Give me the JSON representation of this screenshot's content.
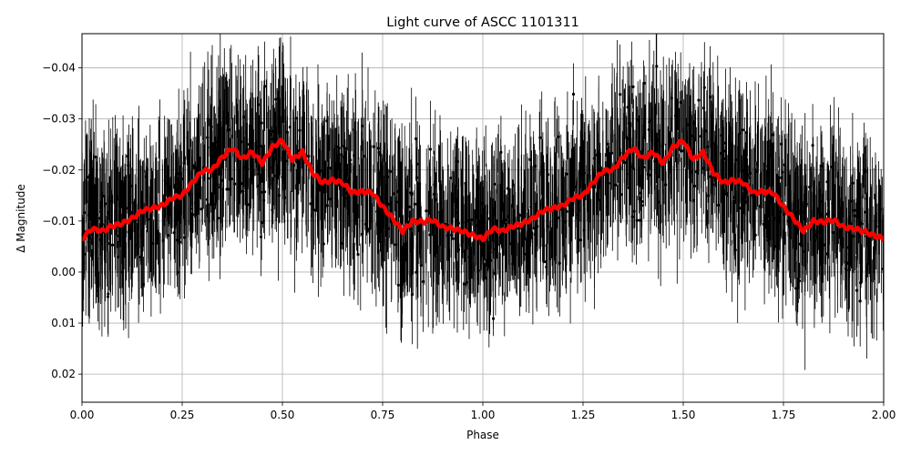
{
  "chart_data": {
    "type": "scatter",
    "title": "Light curve of ASCC 1101311",
    "xlabel": "Phase",
    "ylabel": "Δ Magnitude",
    "xlim": [
      0.0,
      2.0
    ],
    "ylim": [
      0.0255,
      -0.0467
    ],
    "y_inverted": true,
    "grid": true,
    "x_ticks": [
      "0.00",
      "0.25",
      "0.50",
      "0.75",
      "1.00",
      "1.25",
      "1.50",
      "1.75",
      "2.00"
    ],
    "x_tick_values": [
      0.0,
      0.25,
      0.5,
      0.75,
      1.0,
      1.25,
      1.5,
      1.75,
      2.0
    ],
    "y_ticks": [
      "−0.04",
      "−0.03",
      "−0.02",
      "−0.01",
      "0.00",
      "0.01",
      "0.02"
    ],
    "y_tick_values": [
      -0.04,
      -0.03,
      -0.02,
      -0.01,
      0.0,
      0.01,
      0.02
    ],
    "series": [
      {
        "name": "observations",
        "style": "black points with vertical error bars",
        "color": "#000000",
        "description": "Dense cloud of phase-folded photometric points spanning roughly +0.025 to -0.047 mag with error bars ~0.005-0.01 mag"
      },
      {
        "name": "binned_mean",
        "style": "thick red line",
        "color": "#ff0000",
        "x": [
          0.0,
          0.025,
          0.05,
          0.075,
          0.1,
          0.125,
          0.15,
          0.175,
          0.2,
          0.225,
          0.25,
          0.275,
          0.3,
          0.325,
          0.35,
          0.375,
          0.4,
          0.425,
          0.45,
          0.475,
          0.5,
          0.525,
          0.55,
          0.575,
          0.6,
          0.625,
          0.65,
          0.675,
          0.7,
          0.725,
          0.75,
          0.775,
          0.8,
          0.825,
          0.85,
          0.875,
          0.9,
          0.925,
          0.95,
          0.975,
          1.0,
          1.025,
          1.05,
          1.075,
          1.1,
          1.125,
          1.15,
          1.175,
          1.2,
          1.225,
          1.25,
          1.275,
          1.3,
          1.325,
          1.35,
          1.375,
          1.4,
          1.425,
          1.45,
          1.475,
          1.5,
          1.525,
          1.55,
          1.575,
          1.6,
          1.625,
          1.65,
          1.675,
          1.7,
          1.725,
          1.75,
          1.775,
          1.8,
          1.825,
          1.85,
          1.875,
          1.9,
          1.925,
          1.95,
          1.975,
          2.0
        ],
        "y": [
          -0.0065,
          -0.0085,
          -0.008,
          -0.009,
          -0.0095,
          -0.0105,
          -0.012,
          -0.0125,
          -0.013,
          -0.0145,
          -0.015,
          -0.0175,
          -0.0198,
          -0.02,
          -0.0225,
          -0.0243,
          -0.0222,
          -0.0235,
          -0.0213,
          -0.0245,
          -0.0258,
          -0.022,
          -0.0235,
          -0.0195,
          -0.0175,
          -0.018,
          -0.0175,
          -0.0155,
          -0.0158,
          -0.0155,
          -0.0128,
          -0.0105,
          -0.008,
          -0.01,
          -0.0098,
          -0.0102,
          -0.0088,
          -0.0085,
          -0.008,
          -0.0072,
          -0.0065,
          -0.0085,
          -0.008,
          -0.009,
          -0.0095,
          -0.0105,
          -0.012,
          -0.0125,
          -0.013,
          -0.0145,
          -0.015,
          -0.0175,
          -0.0198,
          -0.02,
          -0.0225,
          -0.0243,
          -0.0222,
          -0.0235,
          -0.0213,
          -0.0245,
          -0.0258,
          -0.022,
          -0.0235,
          -0.0195,
          -0.0175,
          -0.018,
          -0.0175,
          -0.0155,
          -0.0158,
          -0.0155,
          -0.0128,
          -0.0105,
          -0.008,
          -0.01,
          -0.0098,
          -0.0102,
          -0.0088,
          -0.0085,
          -0.008,
          -0.0072,
          -0.0065
        ]
      }
    ]
  }
}
